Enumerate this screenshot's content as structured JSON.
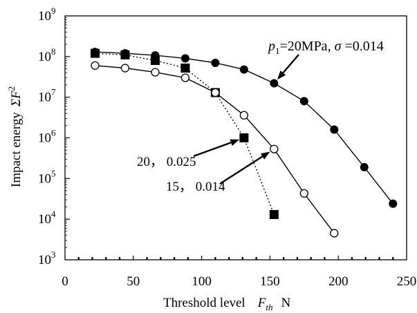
{
  "chart_data": {
    "type": "line",
    "title": "",
    "xlabel": {
      "main": "Threshold level",
      "var": "F",
      "sub": "th",
      "unit": "N"
    },
    "ylabel": {
      "main": "Impact energy",
      "sym": "Σ",
      "var": "F",
      "sup": "2"
    },
    "xlim": [
      0,
      250
    ],
    "ylim": [
      1000,
      1000000000
    ],
    "yscale": "log",
    "grid": false,
    "legend": "none",
    "x_ticks": [
      "0",
      "50",
      "100",
      "150",
      "200",
      "250"
    ],
    "y_ticks": [
      {
        "base": "10",
        "exp": "3"
      },
      {
        "base": "10",
        "exp": "4"
      },
      {
        "base": "10",
        "exp": "5"
      },
      {
        "base": "10",
        "exp": "6"
      },
      {
        "base": "10",
        "exp": "7"
      },
      {
        "base": "10",
        "exp": "8"
      },
      {
        "base": "10",
        "exp": "9"
      }
    ],
    "series": [
      {
        "label": "p1=20MPa, σ=0.014",
        "marker": "filled-circle",
        "line": "solid",
        "x": [
          22,
          44,
          66,
          88,
          110,
          131,
          153,
          175,
          197,
          219,
          240
        ],
        "y": [
          130000000,
          120000000,
          107000000,
          90000000,
          70000000,
          48000000,
          22000000,
          8000000,
          1600000,
          190000,
          24000
        ]
      },
      {
        "label": "20, 0.025",
        "marker": "filled-square",
        "line": "dotted",
        "x": [
          22,
          44,
          66,
          88,
          110,
          131,
          153
        ],
        "y": [
          120000000,
          110000000,
          80000000,
          52000000,
          13000000,
          1000000,
          13000
        ]
      },
      {
        "label": "15, 0.014",
        "marker": "open-circle",
        "line": "solid",
        "x": [
          22,
          44,
          66,
          88,
          110,
          131,
          153,
          175,
          197
        ],
        "y": [
          60000000,
          52000000,
          41000000,
          30000000,
          13000000,
          3600000,
          530000,
          43000,
          4500
        ]
      }
    ],
    "annotations": [
      {
        "id": "a1",
        "parts": [
          "p",
          "1",
          "=20MPa,  ",
          "σ",
          " =0.014"
        ]
      },
      {
        "id": "a2",
        "text": "20， 0.025"
      },
      {
        "id": "a3",
        "text": "15， 0.014"
      }
    ]
  }
}
